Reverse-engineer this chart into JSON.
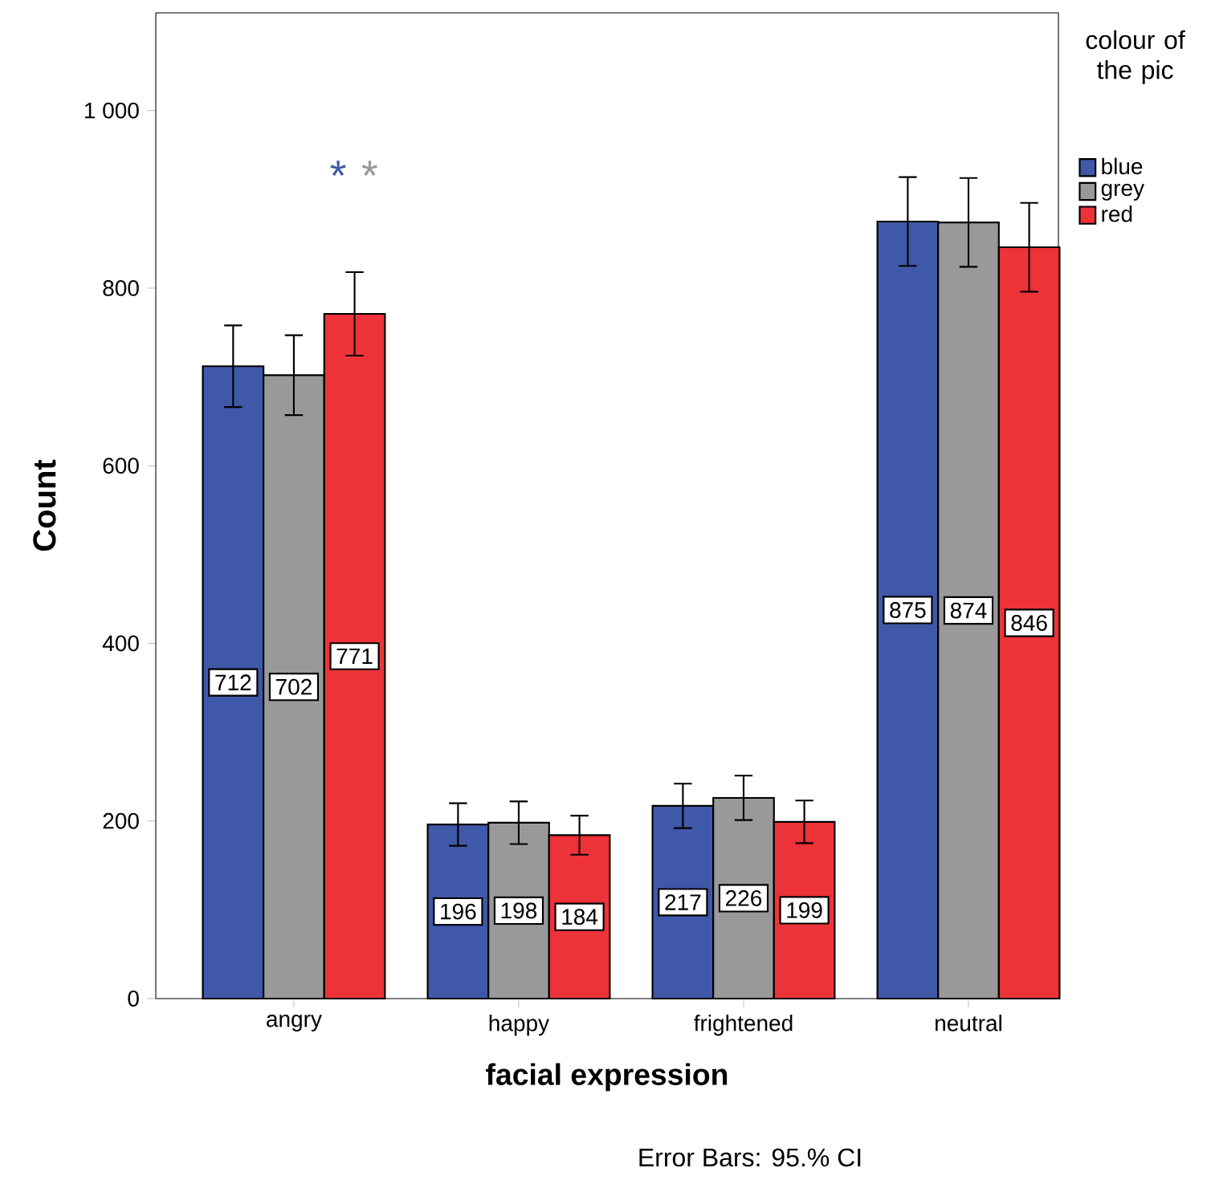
{
  "chart_data": {
    "type": "bar",
    "xlabel": "facial expression",
    "ylabel": "Count",
    "legend_title": "colour of the pic",
    "legend": "right",
    "grid": false,
    "data_labels": true,
    "categories": [
      "angry",
      "happy",
      "frightened",
      "neutral"
    ],
    "ylim": [
      0,
      1110
    ],
    "yticks": [
      0,
      200,
      400,
      600,
      800,
      {
        "value": 1000,
        "label": "1 000"
      }
    ],
    "series": [
      {
        "name": "blue",
        "color": "#3f58a8",
        "values": [
          712,
          196,
          217,
          875
        ],
        "errors": [
          46,
          24,
          25,
          50
        ]
      },
      {
        "name": "grey",
        "color": "#999999",
        "values": [
          702,
          198,
          226,
          874
        ],
        "errors": [
          45,
          24,
          25,
          50
        ]
      },
      {
        "name": "red",
        "color": "#ee3338",
        "values": [
          771,
          184,
          199,
          846
        ],
        "errors": [
          47,
          22,
          24,
          50
        ]
      }
    ],
    "annotations": [
      "*",
      "*",
      "Error Bars: 95.% CI"
    ]
  }
}
